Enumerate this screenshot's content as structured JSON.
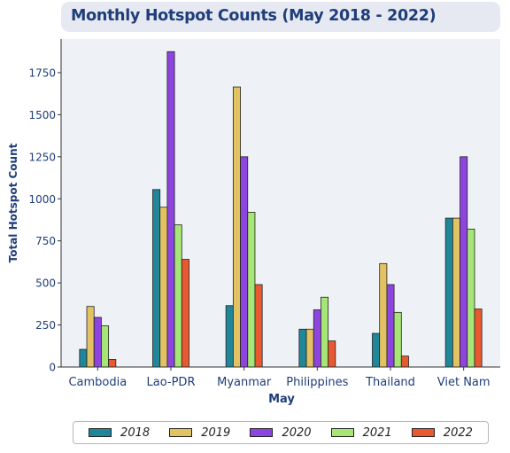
{
  "chart_data": {
    "type": "bar",
    "title": "Monthly Hotspot Counts (May 2018 - 2022)",
    "xlabel": "May",
    "ylabel": "Total Hotspot Count",
    "categories": [
      "Cambodia",
      "Lao-PDR",
      "Myanmar",
      "Philippines",
      "Thailand",
      "Viet Nam"
    ],
    "yticks": [
      0,
      250,
      500,
      750,
      1000,
      1250,
      1500,
      1750
    ],
    "ylim": [
      0,
      1950
    ],
    "grid": false,
    "legend_position": "bottom",
    "series": [
      {
        "name": "2018",
        "color": "#20879a",
        "values": [
          105,
          1055,
          365,
          225,
          200,
          885
        ]
      },
      {
        "name": "2019",
        "color": "#e3c264",
        "values": [
          360,
          950,
          1665,
          225,
          615,
          885
        ]
      },
      {
        "name": "2020",
        "color": "#8e44df",
        "values": [
          295,
          1875,
          1250,
          340,
          490,
          1250
        ]
      },
      {
        "name": "2021",
        "color": "#a6e676",
        "values": [
          245,
          845,
          920,
          415,
          325,
          820
        ]
      },
      {
        "name": "2022",
        "color": "#e8592f",
        "values": [
          45,
          640,
          490,
          155,
          65,
          345
        ]
      }
    ]
  }
}
